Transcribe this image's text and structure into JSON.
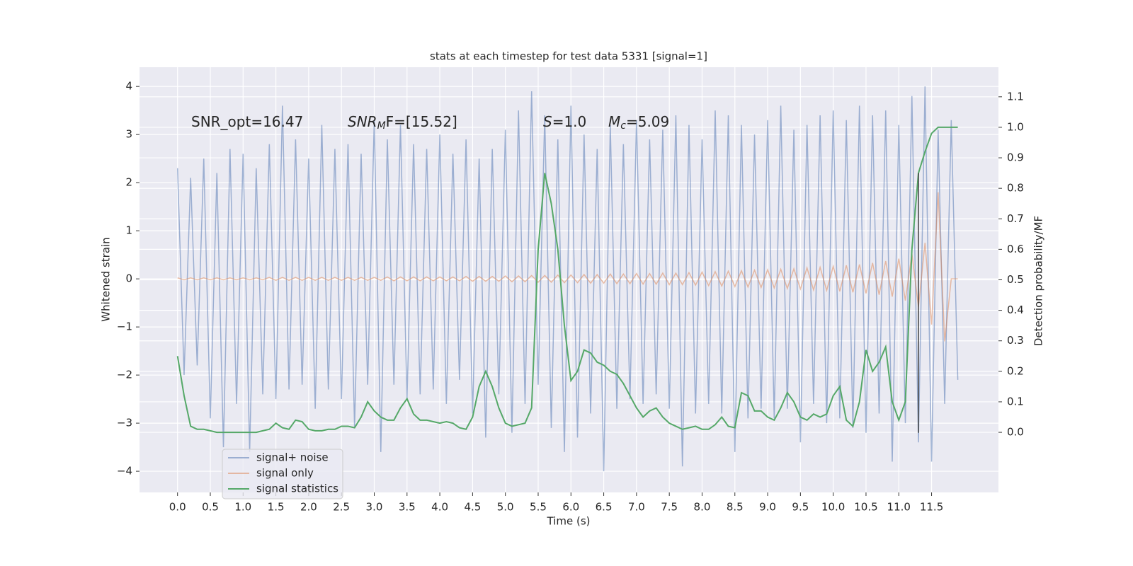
{
  "chart_data": {
    "type": "line",
    "title": "stats at each timestep for test data 5331 [signal=1]",
    "xlabel": "Time (s)",
    "ylabel": "Whitened strain",
    "y2label": "Detection probability/MF",
    "annotations": [
      {
        "main": "SNR_opt=16.47",
        "italic": false
      },
      {
        "main": "SNR",
        "sub": "M",
        "rest": "F=[15.52]",
        "italic": true
      },
      {
        "main": "S",
        "rest": "=1.0",
        "italic": true
      },
      {
        "main": "M",
        "sub": "c",
        "rest": "=5.09",
        "italic": true
      }
    ],
    "x": [
      0,
      0.1,
      0.2,
      0.3,
      0.4,
      0.5,
      0.6,
      0.7,
      0.8,
      0.9,
      1,
      1.1,
      1.2,
      1.3,
      1.4,
      1.5,
      1.6,
      1.7,
      1.8,
      1.9,
      2,
      2.1,
      2.2,
      2.3,
      2.4,
      2.5,
      2.6,
      2.7,
      2.8,
      2.9,
      3,
      3.1,
      3.2,
      3.3,
      3.4,
      3.5,
      3.6,
      3.7,
      3.8,
      3.9,
      4,
      4.1,
      4.2,
      4.3,
      4.4,
      4.5,
      4.6,
      4.7,
      4.8,
      4.9,
      5,
      5.1,
      5.2,
      5.3,
      5.4,
      5.5,
      5.6,
      5.7,
      5.8,
      5.9,
      6,
      6.1,
      6.2,
      6.3,
      6.4,
      6.5,
      6.6,
      6.7,
      6.8,
      6.9,
      7,
      7.1,
      7.2,
      7.3,
      7.4,
      7.5,
      7.6,
      7.7,
      7.8,
      7.9,
      8,
      8.1,
      8.2,
      8.3,
      8.4,
      8.5,
      8.6,
      8.7,
      8.8,
      8.9,
      9,
      9.1,
      9.2,
      9.3,
      9.4,
      9.5,
      9.6,
      9.7,
      9.8,
      9.9,
      10,
      10.1,
      10.2,
      10.3,
      10.4,
      10.5,
      10.6,
      10.7,
      10.8,
      10.9,
      11,
      11.1,
      11.2,
      11.3,
      11.4,
      11.5,
      11.6,
      11.7,
      11.8,
      11.9
    ],
    "series": [
      {
        "name": "signal+ noise",
        "color": "#4c72b0",
        "alpha": 0.5,
        "axis": "y",
        "values": [
          2.3,
          -2.0,
          2.1,
          -1.8,
          2.5,
          -2.9,
          2.2,
          -3.5,
          2.7,
          -2.6,
          2.6,
          -3.6,
          2.3,
          -2.4,
          2.8,
          -2.5,
          3.6,
          -2.3,
          2.9,
          -2.2,
          2.5,
          -2.7,
          3.2,
          -2.3,
          2.7,
          -2.5,
          2.8,
          -3.1,
          2.6,
          -2.2,
          3.3,
          -3.6,
          2.9,
          -2.2,
          3.2,
          -2.5,
          2.8,
          -2.4,
          2.7,
          -2.3,
          3.0,
          -2.6,
          2.6,
          -2.1,
          2.9,
          -2.8,
          2.5,
          -3.3,
          2.7,
          -2.4,
          3.1,
          -3.2,
          3.5,
          -2.6,
          3.9,
          -2.2,
          3.4,
          -3.1,
          2.9,
          -3.6,
          3.6,
          -3.3,
          3.0,
          -2.8,
          2.7,
          -4.0,
          3.2,
          -2.7,
          2.8,
          -2.5,
          3.3,
          -2.6,
          2.9,
          -2.4,
          3.1,
          -2.7,
          3.4,
          -3.9,
          3.2,
          -2.8,
          2.9,
          -2.6,
          3.5,
          -2.8,
          3.4,
          -3.6,
          3.2,
          -2.9,
          3.0,
          -2.7,
          3.3,
          -2.9,
          3.6,
          -2.7,
          3.1,
          -3.4,
          3.2,
          -2.6,
          3.4,
          -3.0,
          3.5,
          -2.9,
          3.3,
          -3.1,
          3.6,
          -3.2,
          3.4,
          -2.8,
          3.5,
          -3.8,
          3.2,
          -3.0,
          3.8,
          -3.4,
          4.0,
          -3.8,
          3.1,
          -2.6,
          3.3,
          -2.1
        ]
      },
      {
        "name": "signal only",
        "color": "#dd8452",
        "alpha": 0.5,
        "axis": "y",
        "values": [
          0.02,
          -0.02,
          0.02,
          -0.02,
          0.02,
          -0.02,
          0.02,
          -0.02,
          0.02,
          -0.02,
          0.02,
          -0.02,
          0.02,
          -0.02,
          0.03,
          -0.03,
          0.03,
          -0.03,
          0.03,
          -0.03,
          0.03,
          -0.03,
          0.03,
          -0.03,
          0.03,
          -0.03,
          0.03,
          -0.03,
          0.03,
          -0.03,
          0.03,
          -0.03,
          0.04,
          -0.04,
          0.04,
          -0.04,
          0.04,
          -0.04,
          0.04,
          -0.04,
          0.04,
          -0.04,
          0.04,
          -0.04,
          0.05,
          -0.05,
          0.05,
          -0.05,
          0.05,
          -0.05,
          0.06,
          -0.06,
          0.06,
          -0.06,
          0.07,
          -0.07,
          0.07,
          -0.07,
          0.08,
          -0.08,
          0.08,
          -0.08,
          0.09,
          -0.09,
          0.09,
          -0.09,
          0.1,
          -0.1,
          0.1,
          -0.1,
          0.11,
          -0.11,
          0.11,
          -0.11,
          0.12,
          -0.12,
          0.12,
          -0.12,
          0.13,
          -0.13,
          0.14,
          -0.14,
          0.15,
          -0.15,
          0.16,
          -0.16,
          0.17,
          -0.17,
          0.18,
          -0.18,
          0.19,
          -0.19,
          0.2,
          -0.2,
          0.21,
          -0.21,
          0.23,
          -0.23,
          0.24,
          -0.24,
          0.26,
          -0.26,
          0.28,
          -0.28,
          0.3,
          -0.3,
          0.33,
          -0.33,
          0.37,
          -0.37,
          0.42,
          -0.45,
          0.52,
          -0.58,
          0.75,
          -0.95,
          1.8,
          -1.3,
          0,
          0
        ]
      },
      {
        "name": "signal statistics",
        "color": "#55a868",
        "axis": "y2",
        "values": [
          0.25,
          0.12,
          0.02,
          0.01,
          0.01,
          0.005,
          0,
          0,
          0,
          0,
          0,
          0,
          0,
          0.005,
          0.01,
          0.03,
          0.015,
          0.01,
          0.04,
          0.035,
          0.01,
          0.005,
          0.005,
          0.01,
          0.01,
          0.02,
          0.02,
          0.015,
          0.05,
          0.1,
          0.07,
          0.05,
          0.04,
          0.04,
          0.08,
          0.11,
          0.06,
          0.04,
          0.04,
          0.035,
          0.03,
          0.035,
          0.03,
          0.015,
          0.01,
          0.05,
          0.15,
          0.2,
          0.15,
          0.08,
          0.03,
          0.02,
          0.025,
          0.03,
          0.08,
          0.6,
          0.85,
          0.75,
          0.6,
          0.35,
          0.17,
          0.2,
          0.27,
          0.26,
          0.23,
          0.22,
          0.2,
          0.19,
          0.16,
          0.12,
          0.08,
          0.05,
          0.07,
          0.08,
          0.05,
          0.03,
          0.02,
          0.01,
          0.015,
          0.02,
          0.01,
          0.01,
          0.025,
          0.05,
          0.02,
          0.015,
          0.13,
          0.12,
          0.07,
          0.07,
          0.05,
          0.04,
          0.08,
          0.13,
          0.1,
          0.05,
          0.04,
          0.06,
          0.05,
          0.06,
          0.12,
          0.15,
          0.04,
          0.02,
          0.1,
          0.27,
          0.2,
          0.23,
          0.28,
          0.1,
          0.04,
          0.1,
          0.6,
          0.85,
          0.92,
          0.98,
          1.0,
          1.0,
          1.0,
          1.0
        ]
      }
    ],
    "vline": {
      "x": 11.3,
      "y": [
        -3.2,
        2.2
      ],
      "color": "#444444"
    },
    "xlim": [
      -0.58,
      12.52
    ],
    "xticks": [
      {
        "value": 0,
        "label": "0.0"
      },
      {
        "value": 0.5,
        "label": "0.5"
      },
      {
        "value": 1,
        "label": "1.0"
      },
      {
        "value": 1.5,
        "label": "1.5"
      },
      {
        "value": 2,
        "label": "2.0"
      },
      {
        "value": 2.5,
        "label": "2.5"
      },
      {
        "value": 3,
        "label": "3.0"
      },
      {
        "value": 3.5,
        "label": "3.5"
      },
      {
        "value": 4,
        "label": "4.0"
      },
      {
        "value": 4.5,
        "label": "4.5"
      },
      {
        "value": 5,
        "label": "5.0"
      },
      {
        "value": 5.5,
        "label": "5.5"
      },
      {
        "value": 6,
        "label": "6.0"
      },
      {
        "value": 6.5,
        "label": "6.5"
      },
      {
        "value": 7,
        "label": "7.0"
      },
      {
        "value": 7.5,
        "label": "7.5"
      },
      {
        "value": 8,
        "label": "8.0"
      },
      {
        "value": 8.5,
        "label": "8.5"
      },
      {
        "value": 9,
        "label": "9.0"
      },
      {
        "value": 9.5,
        "label": "9.5"
      },
      {
        "value": 10,
        "label": "10.0"
      },
      {
        "value": 10.5,
        "label": "10.5"
      },
      {
        "value": 11,
        "label": "11.0"
      },
      {
        "value": 11.5,
        "label": "11.5"
      }
    ],
    "ylim": [
      -4.44,
      4.4
    ],
    "yticks": [
      {
        "value": -4,
        "label": "−4"
      },
      {
        "value": -3,
        "label": "−3"
      },
      {
        "value": -2,
        "label": "−2"
      },
      {
        "value": -1,
        "label": "−1"
      },
      0,
      1,
      2,
      3,
      4
    ],
    "y2lim": [
      -0.197,
      1.197
    ],
    "y2ticks": [
      {
        "value": 0,
        "label": "0.0"
      },
      {
        "value": 0.1,
        "label": "0.1"
      },
      {
        "value": 0.2,
        "label": "0.2"
      },
      {
        "value": 0.3,
        "label": "0.3"
      },
      {
        "value": 0.4,
        "label": "0.4"
      },
      {
        "value": 0.5,
        "label": "0.5"
      },
      {
        "value": 0.6,
        "label": "0.6"
      },
      {
        "value": 0.7,
        "label": "0.7"
      },
      {
        "value": 0.8,
        "label": "0.8"
      },
      {
        "value": 0.9,
        "label": "0.9"
      },
      {
        "value": 1,
        "label": "1.0"
      },
      {
        "value": 1.1,
        "label": "1.1"
      }
    ],
    "grid": true,
    "legend": "lower left",
    "background": "#eaeaf2"
  }
}
